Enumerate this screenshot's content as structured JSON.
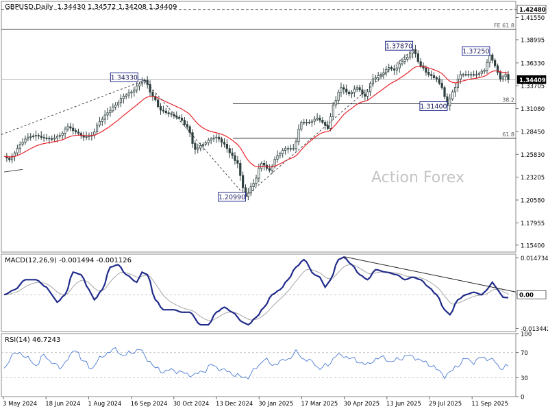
{
  "chart_data": {
    "type": "line",
    "symbol": "GBPUSD,Daily",
    "ohlc": "1.34430 1.34572 1.34208 1.34409",
    "watermark": "Action Forex",
    "colors": {
      "background": "#ffffff",
      "price": "#2f3f3f",
      "ma": "#e8232a",
      "macd": "#1f2a8a",
      "signal": "#a6a6a6",
      "rsi": "#4a7bd4",
      "label_border": "#1f2a8a",
      "grid": "#c8c8c8",
      "level": "#333333",
      "price_tag_bg": "#000000",
      "price_tag_fg": "#ffffff"
    },
    "x_labels": [
      "3 May 2024",
      "18 Jun 2024",
      "1 Aug 2024",
      "16 Sep 2024",
      "30 Oct 2024",
      "13 Dec 2024",
      "30 Jan 2025",
      "17 Mar 2025",
      "30 Apr 2025",
      "13 Jun 2025",
      "29 Jul 2025",
      "11 Sep 2025"
    ],
    "price_panel": {
      "ylim": [
        1.146,
        1.434
      ],
      "ticks": [
        "1.42480",
        "1.41550",
        "1.38995",
        "1.36330",
        "1.33705",
        "1.31080",
        "1.28450",
        "1.25830",
        "1.23205",
        "1.20580",
        "1.17955",
        "1.15400"
      ],
      "tick_values": [
        1.4248,
        1.4155,
        1.38995,
        1.3633,
        1.33705,
        1.3108,
        1.2845,
        1.2583,
        1.23205,
        1.2058,
        1.17955,
        1.154
      ],
      "current_tag": "1.34409",
      "current_value": 1.34409,
      "top_tag": "1.42480",
      "top_value": 1.4248,
      "levels": [
        {
          "label": "FE 61.8",
          "value": 1.4018,
          "start": 0.0
        },
        {
          "label": "38.2",
          "value": 1.3164,
          "start": 0.45
        },
        {
          "label": "61.8",
          "value": 1.2767,
          "start": 0.45
        }
      ],
      "callouts": [
        "1.34330",
        "1.20990",
        "1.37870",
        "1.31400",
        "1.37250"
      ],
      "close_anchors": [
        [
          0,
          1.256
        ],
        [
          2,
          1.252
        ],
        [
          4,
          1.26
        ],
        [
          6,
          1.27
        ],
        [
          9,
          1.278
        ],
        [
          12,
          1.28
        ],
        [
          15,
          1.277
        ],
        [
          18,
          1.276
        ],
        [
          21,
          1.28
        ],
        [
          24,
          1.29
        ],
        [
          27,
          1.284
        ],
        [
          30,
          1.278
        ],
        [
          33,
          1.28
        ],
        [
          36,
          1.296
        ],
        [
          39,
          1.306
        ],
        [
          42,
          1.315
        ],
        [
          45,
          1.325
        ],
        [
          48,
          1.33
        ],
        [
          51,
          1.339
        ],
        [
          53,
          1.3433
        ],
        [
          56,
          1.325
        ],
        [
          59,
          1.309
        ],
        [
          62,
          1.305
        ],
        [
          66,
          1.3
        ],
        [
          69,
          1.29
        ],
        [
          72,
          1.264
        ],
        [
          75,
          1.27
        ],
        [
          78,
          1.276
        ],
        [
          80,
          1.278
        ],
        [
          83,
          1.27
        ],
        [
          85,
          1.26
        ],
        [
          88,
          1.248
        ],
        [
          90,
          1.22
        ],
        [
          91,
          1.2099
        ],
        [
          94,
          1.225
        ],
        [
          97,
          1.248
        ],
        [
          100,
          1.24
        ],
        [
          103,
          1.257
        ],
        [
          106,
          1.265
        ],
        [
          109,
          1.265
        ],
        [
          112,
          1.295
        ],
        [
          115,
          1.295
        ],
        [
          118,
          1.3
        ],
        [
          120,
          1.295
        ],
        [
          122,
          1.288
        ],
        [
          124,
          1.315
        ],
        [
          127,
          1.335
        ],
        [
          130,
          1.328
        ],
        [
          133,
          1.335
        ],
        [
          136,
          1.325
        ],
        [
          139,
          1.345
        ],
        [
          142,
          1.35
        ],
        [
          145,
          1.358
        ],
        [
          147,
          1.355
        ],
        [
          150,
          1.365
        ],
        [
          152,
          1.37
        ],
        [
          154,
          1.3787
        ],
        [
          157,
          1.36
        ],
        [
          160,
          1.35
        ],
        [
          163,
          1.345
        ],
        [
          165,
          1.335
        ],
        [
          167,
          1.314
        ],
        [
          169,
          1.33
        ],
        [
          172,
          1.35
        ],
        [
          175,
          1.35
        ],
        [
          178,
          1.35
        ],
        [
          181,
          1.355
        ],
        [
          183,
          1.3725
        ],
        [
          185,
          1.36
        ],
        [
          187,
          1.345
        ],
        [
          189,
          1.35
        ],
        [
          190,
          1.3441
        ]
      ]
    },
    "macd_panel": {
      "label": "MACD(12,26,9) -0.001494 -0.001126",
      "ylim": [
        -0.0147,
        0.0162
      ],
      "ticks": [
        "0.014734",
        "0.00",
        "-0.013442"
      ],
      "tick_values": [
        0.014734,
        0.0,
        -0.013442
      ],
      "current_tag": "0.00",
      "macd_anchors": [
        [
          0,
          0.0
        ],
        [
          4,
          0.002
        ],
        [
          8,
          0.006
        ],
        [
          12,
          0.006
        ],
        [
          16,
          0.003
        ],
        [
          18,
          0.0
        ],
        [
          20,
          -0.003
        ],
        [
          23,
          0.0
        ],
        [
          26,
          0.009
        ],
        [
          29,
          0.008
        ],
        [
          32,
          0.002
        ],
        [
          34,
          -0.002
        ],
        [
          37,
          0.002
        ],
        [
          40,
          0.011
        ],
        [
          43,
          0.012
        ],
        [
          46,
          0.008
        ],
        [
          50,
          0.005
        ],
        [
          52,
          0.009
        ],
        [
          54,
          0.008
        ],
        [
          57,
          -0.002
        ],
        [
          60,
          -0.006
        ],
        [
          64,
          -0.006
        ],
        [
          67,
          -0.007
        ],
        [
          70,
          -0.007
        ],
        [
          74,
          -0.012
        ],
        [
          77,
          -0.012
        ],
        [
          80,
          -0.007
        ],
        [
          83,
          -0.005
        ],
        [
          86,
          -0.007
        ],
        [
          90,
          -0.011
        ],
        [
          92,
          -0.012
        ],
        [
          95,
          -0.009
        ],
        [
          98,
          -0.005
        ],
        [
          101,
          0.0
        ],
        [
          104,
          0.002
        ],
        [
          107,
          0.006
        ],
        [
          110,
          0.011
        ],
        [
          113,
          0.014
        ],
        [
          117,
          0.008
        ],
        [
          119,
          0.007
        ],
        [
          121,
          0.003
        ],
        [
          123,
          0.006
        ],
        [
          126,
          0.014
        ],
        [
          128,
          0.015
        ],
        [
          131,
          0.012
        ],
        [
          134,
          0.008
        ],
        [
          137,
          0.006
        ],
        [
          140,
          0.01
        ],
        [
          144,
          0.009
        ],
        [
          148,
          0.008
        ],
        [
          151,
          0.006
        ],
        [
          154,
          0.007
        ],
        [
          157,
          0.006
        ],
        [
          160,
          0.003
        ],
        [
          163,
          0.0
        ],
        [
          166,
          -0.006
        ],
        [
          168,
          -0.008
        ],
        [
          171,
          -0.002
        ],
        [
          174,
          0.0
        ],
        [
          177,
          0.001
        ],
        [
          180,
          0.0
        ],
        [
          182,
          0.002
        ],
        [
          184,
          0.005
        ],
        [
          186,
          0.002
        ],
        [
          188,
          -0.001
        ],
        [
          190,
          -0.0012
        ]
      ]
    },
    "rsi_panel": {
      "label": "RSI(14) 46.7243",
      "ylim": [
        0,
        100
      ],
      "ticks": [
        "100",
        "70",
        "30",
        "0"
      ],
      "tick_values": [
        100,
        70,
        30,
        0
      ],
      "current_tag": "46.7243",
      "rsi_anchors": [
        [
          0,
          45
        ],
        [
          3,
          65
        ],
        [
          6,
          70
        ],
        [
          9,
          60
        ],
        [
          12,
          50
        ],
        [
          15,
          65
        ],
        [
          18,
          55
        ],
        [
          21,
          45
        ],
        [
          24,
          60
        ],
        [
          27,
          75
        ],
        [
          30,
          55
        ],
        [
          33,
          45
        ],
        [
          36,
          60
        ],
        [
          39,
          70
        ],
        [
          42,
          75
        ],
        [
          45,
          65
        ],
        [
          48,
          70
        ],
        [
          51,
          75
        ],
        [
          54,
          60
        ],
        [
          57,
          45
        ],
        [
          60,
          40
        ],
        [
          63,
          42
        ],
        [
          66,
          40
        ],
        [
          69,
          35
        ],
        [
          72,
          35
        ],
        [
          75,
          40
        ],
        [
          78,
          50
        ],
        [
          81,
          45
        ],
        [
          84,
          40
        ],
        [
          87,
          35
        ],
        [
          90,
          30
        ],
        [
          92,
          32
        ],
        [
          95,
          45
        ],
        [
          98,
          60
        ],
        [
          101,
          50
        ],
        [
          104,
          55
        ],
        [
          107,
          60
        ],
        [
          110,
          70
        ],
        [
          113,
          60
        ],
        [
          116,
          55
        ],
        [
          119,
          45
        ],
        [
          122,
          50
        ],
        [
          125,
          65
        ],
        [
          128,
          65
        ],
        [
          131,
          60
        ],
        [
          134,
          55
        ],
        [
          137,
          50
        ],
        [
          140,
          60
        ],
        [
          143,
          62
        ],
        [
          146,
          55
        ],
        [
          149,
          60
        ],
        [
          152,
          65
        ],
        [
          155,
          62
        ],
        [
          158,
          55
        ],
        [
          161,
          50
        ],
        [
          164,
          40
        ],
        [
          166,
          33
        ],
        [
          168,
          38
        ],
        [
          171,
          50
        ],
        [
          174,
          60
        ],
        [
          177,
          55
        ],
        [
          180,
          62
        ],
        [
          183,
          60
        ],
        [
          185,
          55
        ],
        [
          187,
          45
        ],
        [
          189,
          48
        ],
        [
          190,
          47
        ]
      ]
    }
  }
}
